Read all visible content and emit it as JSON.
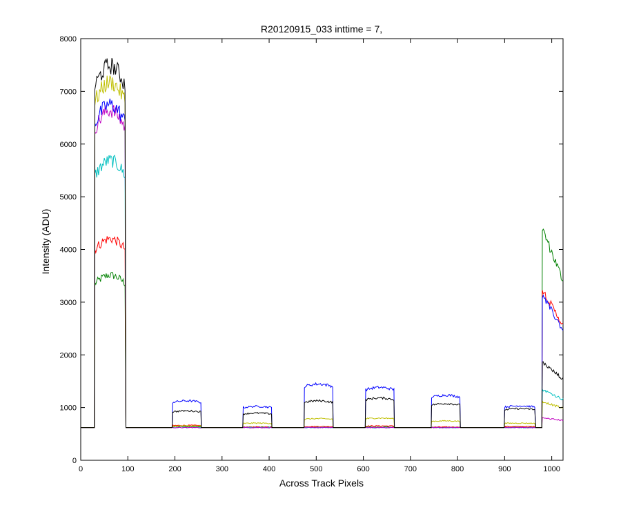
{
  "chart_data": {
    "type": "line",
    "title": "R20120915_033 inttime = 7,",
    "xlabel": "Across Track Pixels",
    "ylabel": "Intensity (ADU)",
    "xlim": [
      0,
      1024
    ],
    "ylim": [
      0,
      8000
    ],
    "xticks": [
      0,
      100,
      200,
      300,
      400,
      500,
      600,
      700,
      800,
      900,
      1000
    ],
    "yticks": [
      0,
      1000,
      2000,
      3000,
      4000,
      5000,
      6000,
      7000,
      8000
    ],
    "grid": false,
    "legend": "none",
    "baseline": 620,
    "segments": [
      {
        "start": 30,
        "end": 95
      },
      {
        "start": 195,
        "end": 255
      },
      {
        "start": 345,
        "end": 405
      },
      {
        "start": 475,
        "end": 535
      },
      {
        "start": 605,
        "end": 665
      },
      {
        "start": 745,
        "end": 805
      },
      {
        "start": 900,
        "end": 965
      },
      {
        "start": 980,
        "end": 1024
      }
    ],
    "series": [
      {
        "color": "#000000",
        "values": [
          7100,
          920,
          880,
          1100,
          1150,
          1050,
          960,
          1700
        ]
      },
      {
        "color": "#bfbf00",
        "values": [
          6800,
          650,
          700,
          780,
          790,
          740,
          700,
          1050
        ]
      },
      {
        "color": "#0000ff",
        "values": [
          6400,
          1100,
          1000,
          1400,
          1340,
          1200,
          1010,
          2800
        ]
      },
      {
        "color": "#bf00bf",
        "values": [
          6300,
          620,
          620,
          620,
          620,
          620,
          620,
          780
        ]
      },
      {
        "color": "#00bfbf",
        "values": [
          5400,
          620,
          620,
          620,
          620,
          620,
          620,
          1250
        ]
      },
      {
        "color": "#ff0000",
        "values": [
          4000,
          660,
          630,
          640,
          650,
          630,
          640,
          2900
        ]
      },
      {
        "color": "#008000",
        "values": [
          3350,
          640,
          630,
          625,
          630,
          625,
          625,
          3900
        ]
      }
    ]
  }
}
